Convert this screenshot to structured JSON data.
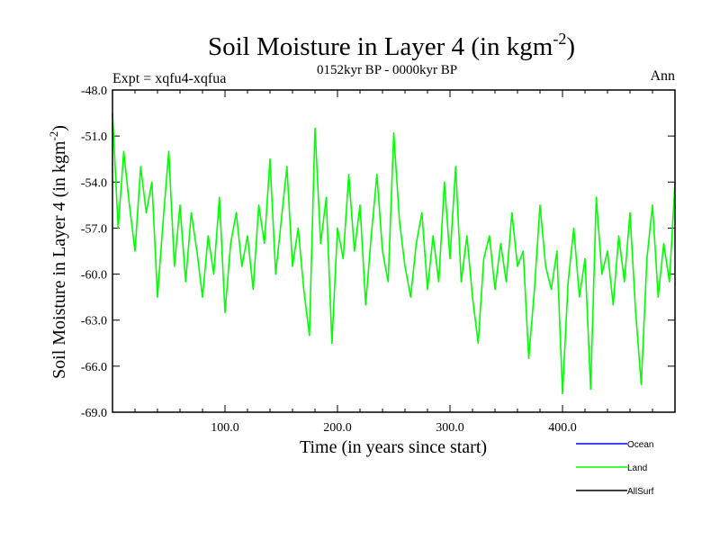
{
  "chart_data": {
    "type": "line",
    "title": "Soil Moisture in Layer 4 (in kgm",
    "title_superscript": "-2",
    "title_close": ")",
    "subtitle": "0152kyr BP - 0000kyr BP",
    "left_label": "Expt = xqfu4-xqfua",
    "right_label": "Ann",
    "xlabel": "Time (in years since start)",
    "ylabel": "Soil Moisture in Layer 4 (in kgm",
    "ylabel_superscript": "-2",
    "ylabel_close": ")",
    "xlim": [
      0,
      500
    ],
    "ylim": [
      -69.0,
      -48.0
    ],
    "x_ticks": [
      100,
      200,
      300,
      400
    ],
    "x_tick_labels": [
      "100.0",
      "200.0",
      "300.0",
      "400.0"
    ],
    "y_ticks": [
      -48,
      -51,
      -54,
      -57,
      -60,
      -63,
      -66,
      -69
    ],
    "y_tick_labels": [
      "-48.0",
      "-51.0",
      "-54.0",
      "-57.0",
      "-60.0",
      "-63.0",
      "-66.0",
      "-69.0"
    ],
    "legend": [
      {
        "name": "Ocean",
        "color": "#0000ff"
      },
      {
        "name": "Land",
        "color": "#00ff00"
      },
      {
        "name": "AllSurf",
        "color": "#000000"
      }
    ],
    "series": [
      {
        "name": "Land",
        "color": "#00ff00",
        "x": [
          0,
          5,
          10,
          15,
          20,
          25,
          30,
          35,
          40,
          45,
          50,
          55,
          60,
          65,
          70,
          75,
          80,
          85,
          90,
          95,
          100,
          105,
          110,
          115,
          120,
          125,
          130,
          135,
          140,
          145,
          150,
          155,
          160,
          165,
          170,
          175,
          180,
          185,
          190,
          195,
          200,
          205,
          210,
          215,
          220,
          225,
          230,
          235,
          240,
          245,
          250,
          255,
          260,
          265,
          270,
          275,
          280,
          285,
          290,
          295,
          300,
          305,
          310,
          315,
          320,
          325,
          330,
          335,
          340,
          345,
          350,
          355,
          360,
          365,
          370,
          375,
          380,
          385,
          390,
          395,
          400,
          405,
          410,
          415,
          420,
          425,
          430,
          435,
          440,
          445,
          450,
          455,
          460,
          465,
          470,
          475,
          480,
          485,
          490,
          495,
          500
        ],
        "values": [
          -49.5,
          -57.0,
          -52.0,
          -55.5,
          -58.5,
          -53.0,
          -56.0,
          -54.0,
          -61.5,
          -56.5,
          -52.0,
          -59.5,
          -55.5,
          -60.5,
          -56.0,
          -58.5,
          -61.5,
          -57.5,
          -60.0,
          -55.0,
          -62.5,
          -58.0,
          -56.0,
          -59.5,
          -57.5,
          -61.0,
          -55.5,
          -58.0,
          -52.5,
          -60.0,
          -56.5,
          -53.0,
          -59.5,
          -57.0,
          -61.0,
          -64.0,
          -50.5,
          -58.0,
          -55.0,
          -64.5,
          -57.0,
          -59.0,
          -53.5,
          -58.5,
          -55.5,
          -62.0,
          -57.5,
          -53.5,
          -58.5,
          -60.5,
          -50.8,
          -56.5,
          -59.5,
          -61.5,
          -58.0,
          -56.0,
          -61.0,
          -57.5,
          -60.5,
          -54.0,
          -59.0,
          -53.0,
          -60.5,
          -57.5,
          -61.5,
          -64.5,
          -59.0,
          -57.5,
          -61.0,
          -58.0,
          -60.5,
          -56.0,
          -59.5,
          -58.5,
          -65.5,
          -61.0,
          -55.5,
          -59.5,
          -61.0,
          -58.5,
          -67.8,
          -60.5,
          -57.0,
          -61.5,
          -59.0,
          -67.5,
          -55.0,
          -60.0,
          -58.5,
          -62.0,
          -57.5,
          -60.5,
          -56.0,
          -62.5,
          -67.2,
          -59.0,
          -55.5,
          -61.5,
          -58.0,
          -60.5,
          -54.0
        ]
      }
    ]
  }
}
